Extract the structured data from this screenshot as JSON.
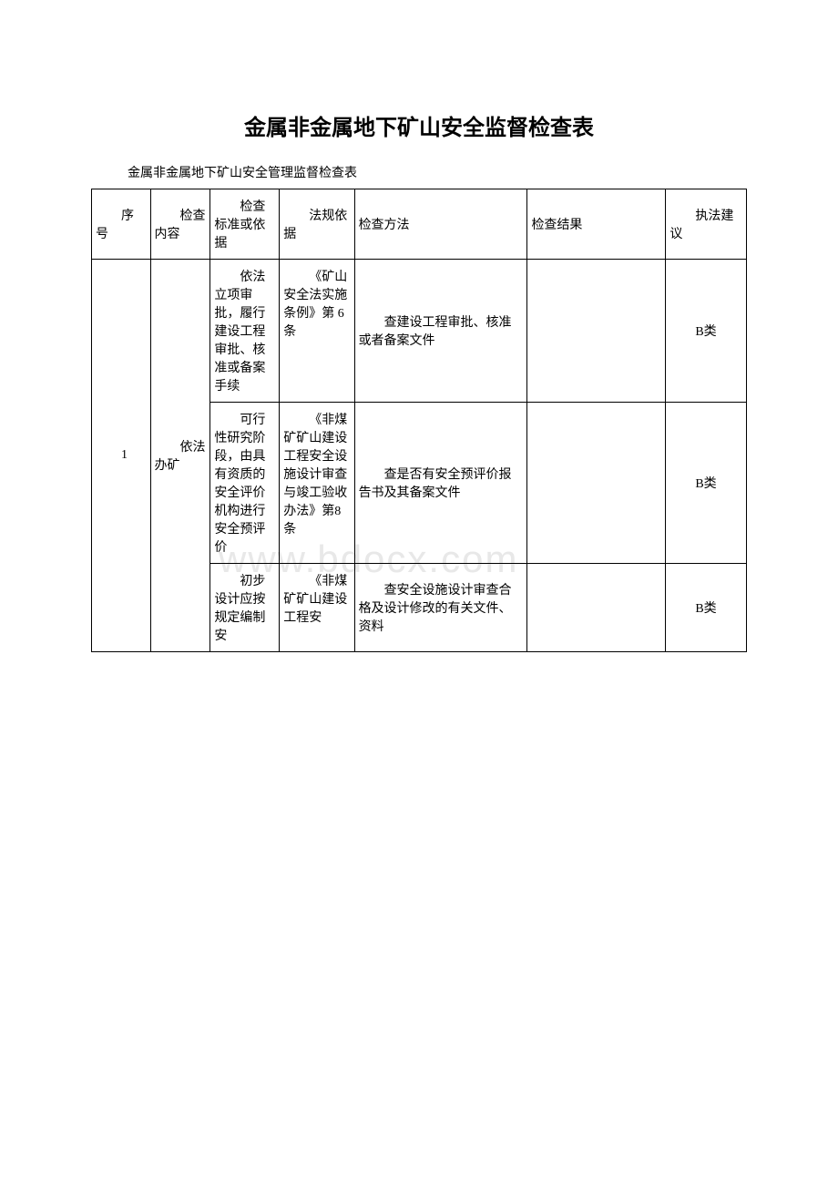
{
  "title": "金属非金属地下矿山安全监督检查表",
  "subtitle": "金属非金属地下矿山安全管理监督检查表",
  "watermark": "www.bdocx.com",
  "headers": {
    "seq": "序号",
    "content": "检查内容",
    "standard": "检查标准或依据",
    "basis": "法规依据",
    "method": "检查方法",
    "result": "检查结果",
    "suggest": "执法建议"
  },
  "rows": [
    {
      "seq": "1",
      "content": "依法办矿",
      "standard": "依法立项审批，履行建设工程审批、核准或备案手续",
      "basis": "《矿山安全法实施条例》第 6条",
      "method": "查建设工程审批、核准或者备案文件",
      "result": "",
      "suggest": "B类"
    },
    {
      "standard": "可行性研究阶段，由具有资质的安全评价机构进行安全预评价",
      "basis": "《非煤矿矿山建设工程安全设施设计审查与竣工验收办法》第8 条",
      "method": "查是否有安全预评价报告书及其备案文件",
      "result": "",
      "suggest": "B类"
    },
    {
      "standard": "初步设计应按规定编制安",
      "basis": "《非煤矿矿山建设工程安",
      "method": "查安全设施设计审查合格及设计修改的有关文件、资料",
      "result": "",
      "suggest": "B类"
    }
  ],
  "styles": {
    "background_color": "#ffffff",
    "border_color": "#000000",
    "text_color": "#000000",
    "watermark_color": "#e8e8e8",
    "title_fontsize": 24,
    "body_fontsize": 14
  }
}
